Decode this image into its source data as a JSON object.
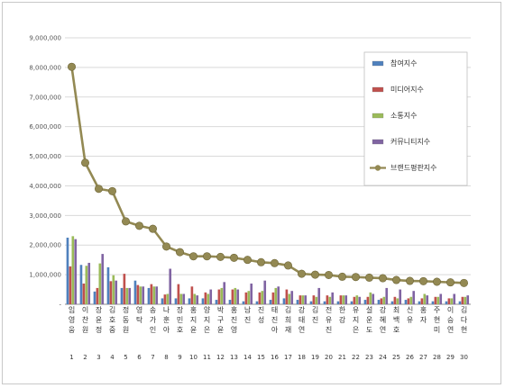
{
  "chart_data": {
    "type": "bar",
    "ylim": [
      0,
      9000000
    ],
    "yticks": [
      "-",
      "1,000,000",
      "2,000,000",
      "3,000,000",
      "4,000,000",
      "5,000,000",
      "6,000,000",
      "7,000,000",
      "8,000,000",
      "9,000,000"
    ],
    "grid": true,
    "legend_position": "top-right",
    "categories": [
      "임영웅",
      "이찬원",
      "장윤정",
      "김호중",
      "정동원",
      "영탁",
      "송가인",
      "나훈아",
      "장민호",
      "홍지윤",
      "양지은",
      "박구윤",
      "홍진영",
      "남진",
      "진성",
      "태진아",
      "김희재",
      "강태연",
      "김진",
      "전유진",
      "한강",
      "유지은",
      "설운도",
      "강혜연",
      "최백호",
      "신유",
      "홍자",
      "주현미",
      "이승연",
      "김다현"
    ],
    "numbers": [
      "1",
      "2",
      "3",
      "4",
      "5",
      "6",
      "7",
      "8",
      "9",
      "10",
      "11",
      "12",
      "13",
      "14",
      "15",
      "16",
      "17",
      "18",
      "19",
      "20",
      "21",
      "22",
      "23",
      "24",
      "25",
      "26",
      "27",
      "28",
      "29",
      "30"
    ],
    "series": [
      {
        "name": "참여지수",
        "type": "bar",
        "color": "#4f81bd",
        "values": [
          2250000,
          1330000,
          430000,
          1250000,
          550000,
          800000,
          550000,
          200000,
          200000,
          200000,
          200000,
          150000,
          150000,
          100000,
          100000,
          150000,
          200000,
          150000,
          100000,
          100000,
          100000,
          100000,
          150000,
          150000,
          100000,
          150000,
          100000,
          100000,
          100000,
          100000
        ]
      },
      {
        "name": "미디어지수",
        "type": "bar",
        "color": "#c0504d",
        "values": [
          1280000,
          700000,
          550000,
          780000,
          1030000,
          650000,
          680000,
          330000,
          680000,
          600000,
          400000,
          500000,
          500000,
          400000,
          400000,
          400000,
          500000,
          300000,
          300000,
          300000,
          300000,
          250000,
          250000,
          200000,
          250000,
          200000,
          200000,
          250000,
          200000,
          250000
        ]
      },
      {
        "name": "소통지수",
        "type": "bar",
        "color": "#9bbb59",
        "values": [
          2300000,
          1300000,
          1380000,
          980000,
          550000,
          600000,
          600000,
          350000,
          350000,
          350000,
          350000,
          550000,
          550000,
          450000,
          450000,
          550000,
          350000,
          300000,
          250000,
          250000,
          300000,
          300000,
          400000,
          250000,
          200000,
          250000,
          350000,
          250000,
          200000,
          250000
        ]
      },
      {
        "name": "커뮤니티지수",
        "type": "bar",
        "color": "#8064a2",
        "values": [
          2200000,
          1400000,
          1700000,
          800000,
          550000,
          600000,
          600000,
          1200000,
          350000,
          300000,
          500000,
          750000,
          500000,
          700000,
          800000,
          600000,
          450000,
          300000,
          550000,
          400000,
          300000,
          250000,
          350000,
          550000,
          500000,
          450000,
          300000,
          350000,
          350000,
          300000
        ]
      },
      {
        "name": "브랜드평판지수",
        "type": "line",
        "color": "#938953",
        "values": [
          8020000,
          4780000,
          3900000,
          3820000,
          2800000,
          2650000,
          2550000,
          1950000,
          1760000,
          1620000,
          1620000,
          1600000,
          1570000,
          1500000,
          1420000,
          1390000,
          1310000,
          1030000,
          1000000,
          990000,
          930000,
          920000,
          900000,
          880000,
          820000,
          790000,
          780000,
          760000,
          740000,
          720000
        ]
      }
    ]
  }
}
